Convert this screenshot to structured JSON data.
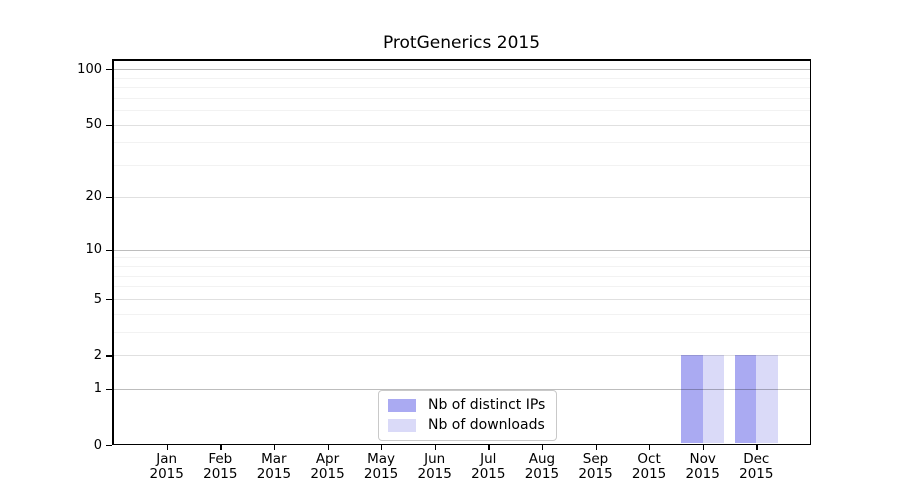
{
  "figure_title": "ProtGenerics 2015",
  "chart_data": {
    "type": "bar",
    "title": "ProtGenerics 2015",
    "categories": [
      "Jan",
      "Feb",
      "Mar",
      "Apr",
      "May",
      "Jun",
      "Jul",
      "Aug",
      "Sep",
      "Oct",
      "Nov",
      "Dec"
    ],
    "category_year": "2015",
    "series": [
      {
        "name": "Nb of distinct IPs",
        "color": "#aaaaf2",
        "values": [
          0,
          0,
          0,
          0,
          0,
          0,
          0,
          0,
          0,
          0,
          2,
          2
        ]
      },
      {
        "name": "Nb of downloads",
        "color": "#dadaf8",
        "values": [
          0,
          0,
          0,
          0,
          0,
          0,
          0,
          0,
          0,
          0,
          2,
          2
        ]
      }
    ],
    "xlabel": "",
    "ylabel": "",
    "yscale": "log1p",
    "ylim": [
      0,
      113.2
    ],
    "yticks": [
      0,
      1,
      2,
      5,
      10,
      20,
      50,
      100
    ],
    "minor_yticks": [
      3,
      4,
      6,
      7,
      8,
      9,
      30,
      40,
      60,
      70,
      80,
      90
    ],
    "decade_gridlines": [
      1,
      10,
      100
    ],
    "grid": true,
    "legend_position": "lower center",
    "background_color": "#ffffff",
    "text_color": "#000000"
  }
}
